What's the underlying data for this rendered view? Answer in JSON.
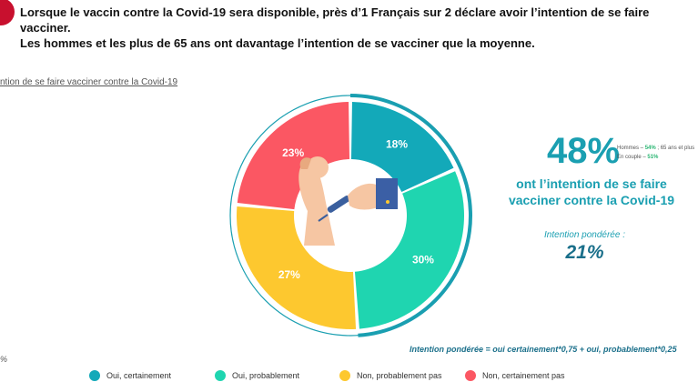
{
  "header": {
    "line1": "Lorsque le vaccin contre la Covid-19 sera disponible, près d’1 Français sur 2 déclare avoir l’intention de se faire vacciner.",
    "line2": "Les hommes et les plus de 65 ans ont davantage l’intention de se vacciner que la moyenne."
  },
  "subtitle": "ntion de se faire vacciner contre la Covid-19",
  "stub_mark": "%",
  "summary": {
    "big_percent": "48%",
    "lead_text": "ont l’intention de se faire vacciner contre la Covid-19",
    "side_note_line1_prefix": "Hommes – ",
    "side_note_line1_value": "54%",
    "side_note_line1_suffix": " ; 65 ans et plus",
    "side_note_line2_prefix": "En couple – ",
    "side_note_line2_value": "51%",
    "weighted_label": "Intention pondérée :",
    "weighted_value": "21%",
    "formula": "Intention pondérée = oui certainement*0,75 + oui, probablement*0,25"
  },
  "chart_data": {
    "type": "pie",
    "donut": true,
    "categories": [
      "Oui, certainement",
      "Oui, probablement",
      "Non, probablement pas",
      "Non, certainement pas"
    ],
    "values": [
      18,
      30,
      27,
      23
    ],
    "data_labels": [
      "18%",
      "30%",
      "27%",
      "23%"
    ],
    "colors": [
      "#13a9b9",
      "#1fd5b0",
      "#fdc82f",
      "#fb5763"
    ],
    "outer_arc_color": "#1a9fb1",
    "outer_arc_value": 48,
    "legend_position": "bottom"
  }
}
